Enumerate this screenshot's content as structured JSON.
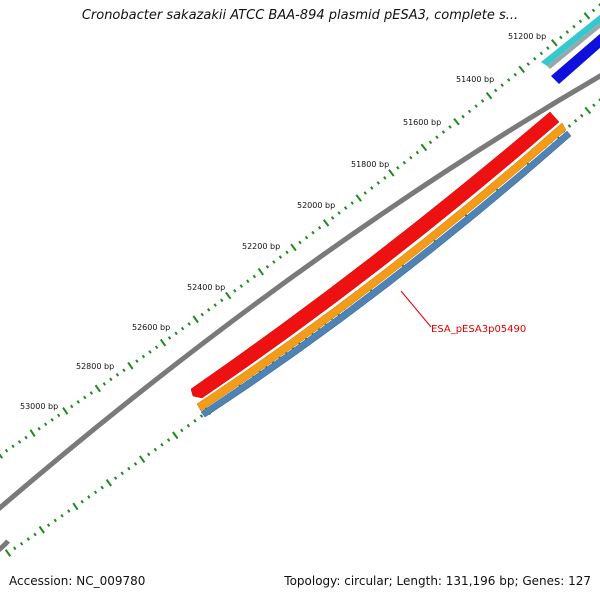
{
  "title": "Cronobacter sakazakii ATCC BAA-894 plasmid pESA3, complete s...",
  "footer": {
    "accession": "Accession: NC_009780",
    "summary": "Topology: circular; Length: 131,196 bp; Genes: 127"
  },
  "ruler": {
    "labels": [
      "51200 bp",
      "51400 bp",
      "51600 bp",
      "51800 bp",
      "52000 bp",
      "52200 bp",
      "52400 bp",
      "52600 bp",
      "52800 bp",
      "53000 bp"
    ]
  },
  "feature_label": "ESA_pESA3p05490",
  "colors": {
    "backbone": "#8c8c8c",
    "ruler_ticks": "#1f8a1f",
    "gene": "#ee1111",
    "cds": "#f39c1a",
    "mrna": "#4f82b5",
    "other_gene": "#1010dd",
    "other_cds": "#35c8cf",
    "label_line": "#e00000"
  }
}
